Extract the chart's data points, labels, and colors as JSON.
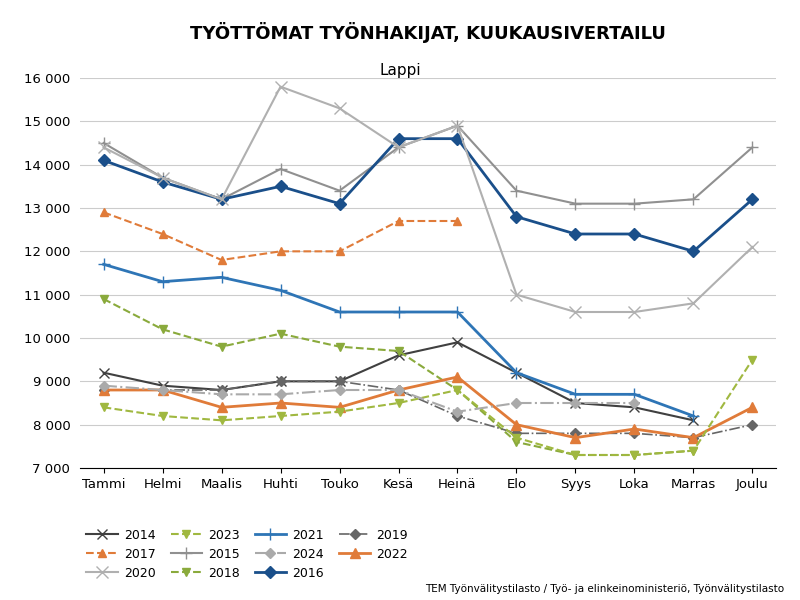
{
  "title": "TYÖTTÖMAT TYÖNHAKIJAT, KUUKAUSIVERTAILU",
  "subtitle": "Lappi",
  "xlabel_months": [
    "Tammi",
    "Helmi",
    "Maalis",
    "Huhti",
    "Touko",
    "Kesä",
    "Heinä",
    "Elo",
    "Syys",
    "Loka",
    "Marras",
    "Joulu"
  ],
  "ylim": [
    7000,
    16000
  ],
  "yticks": [
    7000,
    8000,
    9000,
    10000,
    11000,
    12000,
    13000,
    14000,
    15000,
    16000
  ],
  "source_text": "TEM Työnvälitystilasto / Työ- ja elinkeinoministeriö, Työnvälitystilasto",
  "series": {
    "2014": {
      "color": "#404040",
      "linestyle": "-",
      "marker": "x",
      "lw": 1.5,
      "ms": 7,
      "data": [
        9200,
        8900,
        8800,
        9000,
        9000,
        9600,
        9900,
        9200,
        8500,
        8400,
        8100,
        null
      ]
    },
    "2015": {
      "color": "#909090",
      "linestyle": "-",
      "marker": "+",
      "lw": 1.5,
      "ms": 9,
      "data": [
        14500,
        13700,
        13200,
        13900,
        13400,
        14400,
        14900,
        13400,
        13100,
        13100,
        13200,
        14400
      ]
    },
    "2016": {
      "color": "#1a4f8a",
      "linestyle": "-",
      "marker": "D",
      "lw": 2.0,
      "ms": 6,
      "data": [
        14100,
        13600,
        13200,
        13500,
        13100,
        14600,
        14600,
        12800,
        12400,
        12400,
        12000,
        13200
      ]
    },
    "2017": {
      "color": "#e07b39",
      "linestyle": "--",
      "marker": "^",
      "lw": 1.5,
      "ms": 6,
      "data": [
        12900,
        12400,
        11800,
        12000,
        12000,
        12700,
        12700,
        null,
        null,
        null,
        null,
        null
      ]
    },
    "2018": {
      "color": "#8aaa3c",
      "linestyle": "--",
      "marker": "v",
      "lw": 1.5,
      "ms": 6,
      "data": [
        10900,
        10200,
        9800,
        10100,
        9800,
        9700,
        8800,
        7600,
        7300,
        7300,
        7400,
        null
      ]
    },
    "2019": {
      "color": "#666666",
      "linestyle": "-.",
      "marker": "D",
      "lw": 1.2,
      "ms": 5,
      "data": [
        8800,
        8800,
        8800,
        9000,
        9000,
        8800,
        8200,
        7800,
        7800,
        7800,
        7700,
        8000
      ]
    },
    "2020": {
      "color": "#b0b0b0",
      "linestyle": "-",
      "marker": "x",
      "lw": 1.5,
      "ms": 8,
      "data": [
        14400,
        13700,
        13200,
        15800,
        15300,
        14400,
        14900,
        11000,
        10600,
        10600,
        10800,
        12100
      ]
    },
    "2021": {
      "color": "#2e75b6",
      "linestyle": "-",
      "marker": "+",
      "lw": 2.0,
      "ms": 9,
      "data": [
        11700,
        11300,
        11400,
        11100,
        10600,
        10600,
        10600,
        9200,
        8700,
        8700,
        8200,
        null
      ]
    },
    "2022": {
      "color": "#e07b39",
      "linestyle": "-",
      "marker": "^",
      "lw": 2.0,
      "ms": 7,
      "data": [
        8800,
        8800,
        8400,
        8500,
        8400,
        8800,
        9100,
        8000,
        7700,
        7900,
        7700,
        8400
      ]
    },
    "2023": {
      "color": "#a0b840",
      "linestyle": "--",
      "marker": "v",
      "lw": 1.5,
      "ms": 6,
      "data": [
        8400,
        8200,
        8100,
        8200,
        8300,
        8500,
        8800,
        7700,
        7300,
        7300,
        7400,
        9500
      ]
    },
    "2024": {
      "color": "#aaaaaa",
      "linestyle": "-.",
      "marker": "D",
      "lw": 1.5,
      "ms": 5,
      "data": [
        8900,
        8800,
        8700,
        8700,
        8800,
        8800,
        8300,
        8500,
        8500,
        8500,
        null,
        null
      ]
    }
  },
  "legend_order": [
    "2014",
    "2017",
    "2020",
    "2023",
    "2015",
    "2018",
    "2021",
    "2024",
    "2016",
    "2019",
    "2022",
    null
  ]
}
